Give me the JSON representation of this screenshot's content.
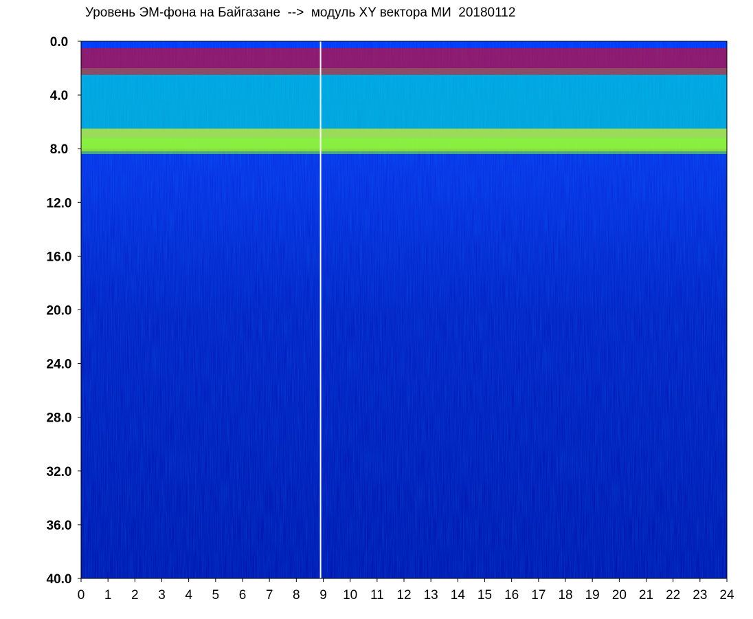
{
  "chart_data": {
    "type": "heatmap",
    "title": "Уровень ЭМ-фона на Байгазане  -->  модуль XY вектора МИ  20180112",
    "xlabel": "",
    "ylabel": "",
    "xlim": [
      0,
      24
    ],
    "ylim": [
      0,
      40
    ],
    "y_axis_inverted": true,
    "x_ticks": [
      "0",
      "1",
      "2",
      "3",
      "4",
      "5",
      "6",
      "7",
      "8",
      "9",
      "10",
      "11",
      "12",
      "13",
      "14",
      "15",
      "16",
      "17",
      "18",
      "19",
      "20",
      "21",
      "22",
      "23",
      "24"
    ],
    "y_ticks": [
      "0.0",
      "4.0",
      "8.0",
      "12.0",
      "16.0",
      "20.0",
      "24.0",
      "28.0",
      "32.0",
      "36.0",
      "40.0"
    ],
    "colormap": [
      "#000ca8",
      "#0030ff",
      "#00aaff",
      "#00ffd0",
      "#7aff30",
      "#ffff00",
      "#ff7800",
      "#ff0000"
    ],
    "bands": [
      {
        "x": [
          0,
          24
        ],
        "y": [
          8.0,
          40.0
        ],
        "level": "low"
      },
      {
        "x": [
          0,
          24
        ],
        "y": [
          2.0,
          8.0
        ],
        "level": "medium"
      },
      {
        "x": [
          0,
          24
        ],
        "y": [
          6.5,
          8.2
        ],
        "level": "high"
      },
      {
        "x": [
          0,
          24
        ],
        "y": [
          0.5,
          2.5
        ],
        "level": "peak"
      }
    ],
    "vertical_line": {
      "x": 8.9,
      "color": "#ffffff"
    },
    "grid": false,
    "legend": "none"
  }
}
